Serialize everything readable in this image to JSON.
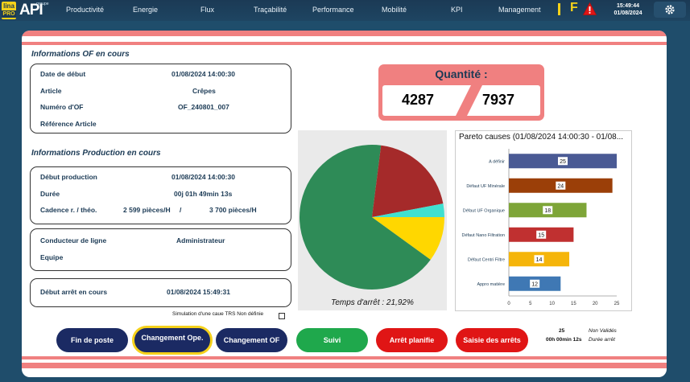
{
  "topbar": {
    "logo_lina": "lina",
    "logo_pro": "PRO",
    "logo_api": "API",
    "logo_group": "groupe",
    "nav": [
      "Productivité",
      "Energie",
      "Flux",
      "Traçabilité",
      "Performance",
      "Mobilité",
      "KPI",
      "Management"
    ],
    "status_letter": "F",
    "time": "15:49:44",
    "date": "01/08/2024",
    "icons": [
      "warning-icon",
      "gear-icon"
    ],
    "colors": {
      "nav_bg": "#1b3a55",
      "accent": "#f5d11a",
      "warning": "#e01515"
    }
  },
  "of_info": {
    "title": "Informations OF en cours",
    "rows": [
      {
        "label": "Date de début",
        "value": "01/08/2024 14:00:30"
      },
      {
        "label": "Article",
        "value": "Crêpes"
      },
      {
        "label": "Numéro d'OF",
        "value": "OF_240801_007"
      },
      {
        "label": "Référence Article",
        "value": ""
      }
    ]
  },
  "prod_info": {
    "title": "Informations Production en cours",
    "debut_label": "Début production",
    "debut_value": "01/08/2024 14:00:30",
    "duree_label": "Durée",
    "duree_value": "00j 01h 49min 13s",
    "cadence_label": "Cadence r. / théo.",
    "cadence_reel": "2 599  pièces/H",
    "cadence_sep": "/",
    "cadence_theo": "3 700  pièces/H"
  },
  "conducteur": {
    "label": "Conducteur de ligne",
    "value": "Administrateur",
    "equipe_label": "Equipe",
    "equipe_value": ""
  },
  "arret": {
    "label": "Début arrêt en cours",
    "value": "01/08/2024 15:49:31"
  },
  "quantity": {
    "title": "Quantité :",
    "produced": "4287",
    "target": "7937"
  },
  "pie": {
    "caption": "Temps d'arrêt : 21,92%",
    "chart_data": {
      "type": "pie",
      "slices": [
        {
          "value": 67,
          "color": "#2e8b57"
        },
        {
          "value": 20,
          "color": "#a52a2a"
        },
        {
          "value": 3,
          "color": "#40e0d0"
        },
        {
          "value": 10,
          "color": "#ffd700"
        }
      ]
    }
  },
  "pareto": {
    "title": "Pareto causes (01/08/2024 14:00:30 - 01/08...",
    "chart_data": {
      "type": "bar",
      "orientation": "horizontal",
      "categories": [
        "A définir",
        "Défaut UF Minérale",
        "Défaut UF Organique",
        "Défaut Nano Filtration",
        "Défaut Centri Filtre",
        "Appro matière"
      ],
      "values": [
        25,
        24,
        18,
        15,
        14,
        12
      ],
      "colors": [
        "#4a5a94",
        "#9b3f08",
        "#7ea538",
        "#c03030",
        "#f5b50a",
        "#3f78b4"
      ],
      "xticks": [
        0,
        5,
        10,
        15,
        20,
        25
      ],
      "xlim": [
        0,
        25
      ]
    }
  },
  "simulation": {
    "label": "Simulation d'une caue TRS Non définie"
  },
  "buttons": {
    "fin_poste": "Fin de poste",
    "changement_ope": "Changement Ope.",
    "changement_of": "Changement OF",
    "suivi": "Suivi",
    "arret_planifie": "Arrêt planifie",
    "saisie_arrets": "Saisie des arrêts"
  },
  "stats": {
    "count": "25",
    "count_label": "Non Validés",
    "duration": "00h 00min 12s",
    "duration_label": "Durée arrêt"
  }
}
